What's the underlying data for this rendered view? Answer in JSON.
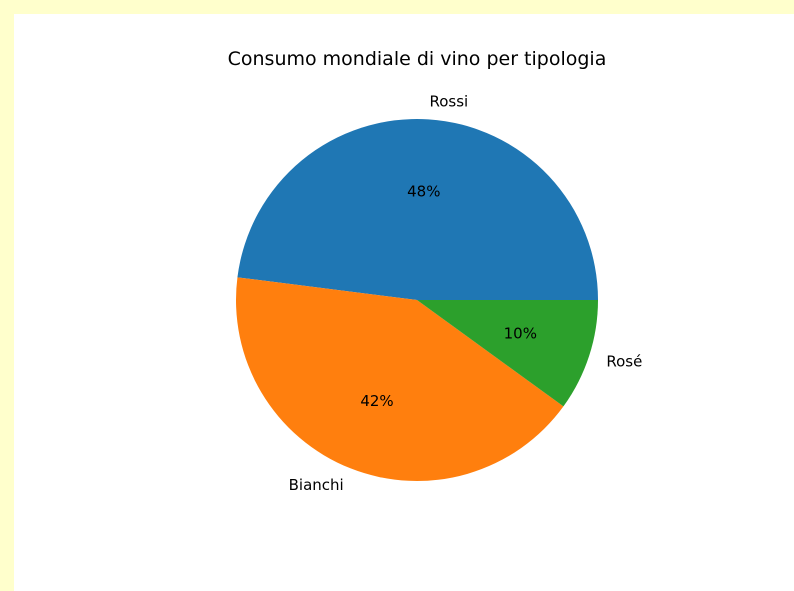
{
  "chart_data": {
    "type": "pie",
    "title": "Consumo mondiale di vino per tipologia",
    "categories": [
      "Rossi",
      "Bianchi",
      "Rosé"
    ],
    "values": [
      48,
      42,
      10
    ],
    "percent_labels": [
      "48%",
      "42%",
      "10%"
    ],
    "colors": [
      "#1f77b4",
      "#ff7f0e",
      "#2ca02c"
    ],
    "start_angle_deg": 0,
    "direction": "counterclockwise"
  }
}
